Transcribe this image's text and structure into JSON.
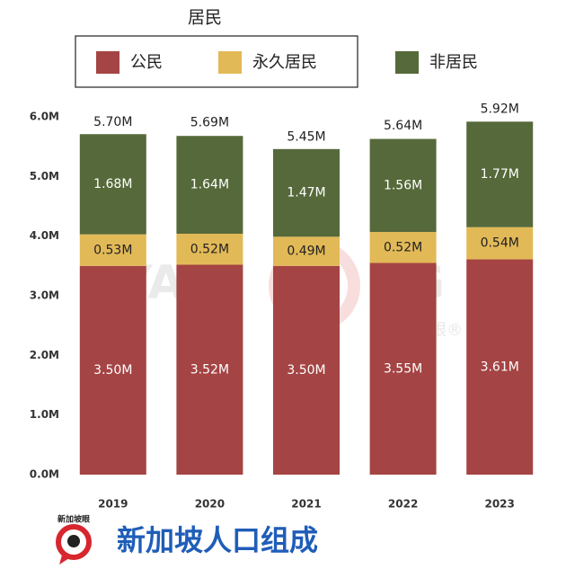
{
  "chart_data": {
    "type": "stacked_bar",
    "legend_title": "居民",
    "title": "新加坡人口组成",
    "logo_text": "新加坡眼",
    "watermark": [
      "YAN",
      "SG",
      "新加坡眼®"
    ],
    "categories": [
      "2019",
      "2020",
      "2021",
      "2022",
      "2023"
    ],
    "series": [
      {
        "name": "公民",
        "color": "#a54444",
        "values": [
          3.5,
          3.52,
          3.5,
          3.55,
          3.61
        ],
        "value_labels": [
          "3.50M",
          "3.52M",
          "3.50M",
          "3.55M",
          "3.61M"
        ]
      },
      {
        "name": "永久居民",
        "color": "#e2b957",
        "values": [
          0.53,
          0.52,
          0.49,
          0.52,
          0.54
        ],
        "value_labels": [
          "0.53M",
          "0.52M",
          "0.49M",
          "0.52M",
          "0.54M"
        ]
      },
      {
        "name": "非居民",
        "color": "#56693a",
        "values": [
          1.68,
          1.64,
          1.47,
          1.56,
          1.77
        ],
        "value_labels": [
          "1.68M",
          "1.64M",
          "1.47M",
          "1.56M",
          "1.77M"
        ]
      }
    ],
    "totals": {
      "values": [
        5.7,
        5.69,
        5.45,
        5.64,
        5.92
      ],
      "value_labels": [
        "5.70M",
        "5.69M",
        "5.45M",
        "5.64M",
        "5.92M"
      ]
    },
    "ylim": [
      0,
      6.0
    ],
    "yticks": [
      {
        "value": 0,
        "label": "0.0M"
      },
      {
        "value": 1,
        "label": "1.0M"
      },
      {
        "value": 2,
        "label": "2.0M"
      },
      {
        "value": 3,
        "label": "3.0M"
      },
      {
        "value": 4,
        "label": "4.0M"
      },
      {
        "value": 5,
        "label": "5.0M"
      },
      {
        "value": 6,
        "label": "6.0M"
      }
    ]
  }
}
